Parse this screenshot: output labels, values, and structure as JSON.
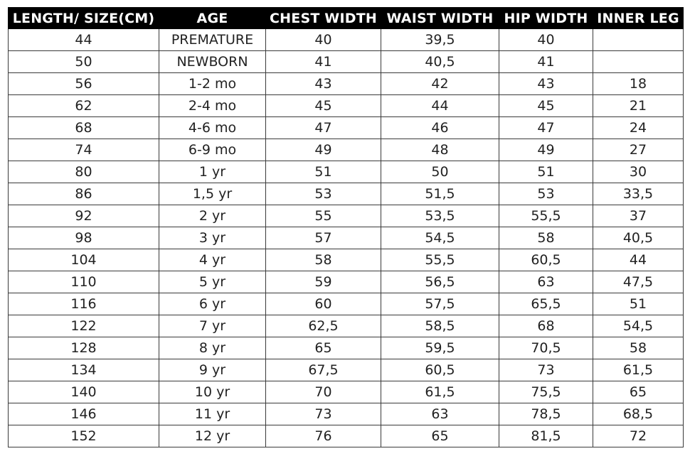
{
  "table": {
    "headers": [
      "LENGTH/ SIZE(CM)",
      "AGE",
      "CHEST WIDTH",
      "WAIST WIDTH",
      "HIP WIDTH",
      "INNER LEG"
    ],
    "rows": [
      [
        "44",
        "PREMATURE",
        "40",
        "39,5",
        "40",
        ""
      ],
      [
        "50",
        "NEWBORN",
        "41",
        "40,5",
        "41",
        ""
      ],
      [
        "56",
        "1-2 mo",
        "43",
        "42",
        "43",
        "18"
      ],
      [
        "62",
        "2-4 mo",
        "45",
        "44",
        "45",
        "21"
      ],
      [
        "68",
        "4-6 mo",
        "47",
        "46",
        "47",
        "24"
      ],
      [
        "74",
        "6-9 mo",
        "49",
        "48",
        "49",
        "27"
      ],
      [
        "80",
        "1 yr",
        "51",
        "50",
        "51",
        "30"
      ],
      [
        "86",
        "1,5 yr",
        "53",
        "51,5",
        "53",
        "33,5"
      ],
      [
        "92",
        "2 yr",
        "55",
        "53,5",
        "55,5",
        "37"
      ],
      [
        "98",
        "3 yr",
        "57",
        "54,5",
        "58",
        "40,5"
      ],
      [
        "104",
        "4 yr",
        "58",
        "55,5",
        "60,5",
        "44"
      ],
      [
        "110",
        "5 yr",
        "59",
        "56,5",
        "63",
        "47,5"
      ],
      [
        "116",
        "6 yr",
        "60",
        "57,5",
        "65,5",
        "51"
      ],
      [
        "122",
        "7 yr",
        "62,5",
        "58,5",
        "68",
        "54,5"
      ],
      [
        "128",
        "8 yr",
        "65",
        "59,5",
        "70,5",
        "58"
      ],
      [
        "134",
        "9 yr",
        "67,5",
        "60,5",
        "73",
        "61,5"
      ],
      [
        "140",
        "10 yr",
        "70",
        "61,5",
        "75,5",
        "65"
      ],
      [
        "146",
        "11 yr",
        "73",
        "63",
        "78,5",
        "68,5"
      ],
      [
        "152",
        "12 yr",
        "76",
        "65",
        "81,5",
        "72"
      ]
    ]
  }
}
